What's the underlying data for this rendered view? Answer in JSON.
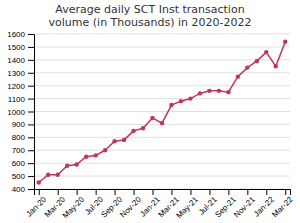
{
  "chart_data": {
    "type": "line",
    "title": "Average daily SCT Inst transaction\nvolume (in Thousands) in 2020-2022",
    "categories": [
      "Jan-20",
      null,
      "Mar-20",
      null,
      "May-20",
      null,
      "Jul-20",
      null,
      "Sep-20",
      null,
      "Nov-20",
      null,
      "Jan-21",
      null,
      "Mar-21",
      null,
      "May-21",
      null,
      "Jul-21",
      null,
      "Sep-21",
      null,
      "Nov-21",
      null,
      "Jan-22",
      null,
      "Mar-22"
    ],
    "values": [
      450,
      510,
      510,
      580,
      590,
      650,
      660,
      700,
      770,
      780,
      850,
      870,
      950,
      910,
      1050,
      1080,
      1100,
      1140,
      1160,
      1160,
      1150,
      1270,
      1340,
      1390,
      1460,
      1350,
      1540
    ],
    "color": "#c0355a",
    "marker": "circle",
    "ylim": [
      400,
      1600
    ],
    "yticks": [
      400,
      500,
      600,
      700,
      800,
      900,
      1000,
      1100,
      1200,
      1300,
      1400,
      1500,
      1600
    ],
    "grid": true
  }
}
